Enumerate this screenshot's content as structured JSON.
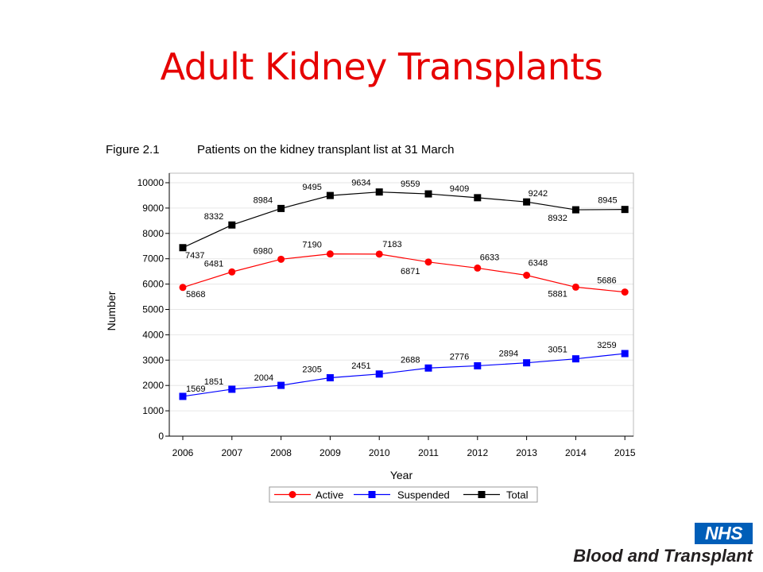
{
  "slide": {
    "title": "Adult Kidney Transplants"
  },
  "figure": {
    "label": "Figure 2.1",
    "caption": "Patients on the kidney transplant list at 31 March"
  },
  "logo": {
    "badge": "NHS",
    "org": "Blood and Transplant",
    "badge_color": "#005eb8"
  },
  "chart_data": {
    "type": "line",
    "xlabel": "Year",
    "ylabel": "Number",
    "x": [
      2006,
      2007,
      2008,
      2009,
      2010,
      2011,
      2012,
      2013,
      2014,
      2015
    ],
    "ylim": [
      0,
      10000
    ],
    "yticks": [
      0,
      1000,
      2000,
      3000,
      4000,
      5000,
      6000,
      7000,
      8000,
      9000,
      10000
    ],
    "grid": true,
    "legend_placement": "bottom",
    "series": [
      {
        "name": "Active",
        "color": "#ff0000",
        "marker": "circle",
        "values": [
          5868,
          6481,
          6980,
          7190,
          7183,
          6871,
          6633,
          6348,
          5881,
          5686
        ],
        "labels": [
          "5868",
          "6481",
          "6980",
          "7190",
          "7183",
          "6871",
          "6633",
          "6348",
          "5881",
          "5686"
        ]
      },
      {
        "name": "Suspended",
        "color": "#0000ff",
        "marker": "square",
        "values": [
          1569,
          1851,
          2004,
          2305,
          2451,
          2688,
          2776,
          2894,
          3051,
          3259
        ],
        "labels": [
          "1569",
          "1851",
          "2004",
          "2305",
          "2451",
          "2688",
          "2776",
          "2894",
          "3051",
          "3259"
        ]
      },
      {
        "name": "Total",
        "color": "#000000",
        "marker": "square",
        "values": [
          7437,
          8332,
          8984,
          9495,
          9634,
          9559,
          9409,
          9242,
          8932,
          8945
        ],
        "labels": [
          "7437",
          "8332",
          "8984",
          "9495",
          "9634",
          "9559",
          "9409",
          "9242",
          "8932",
          "8945"
        ]
      }
    ]
  }
}
